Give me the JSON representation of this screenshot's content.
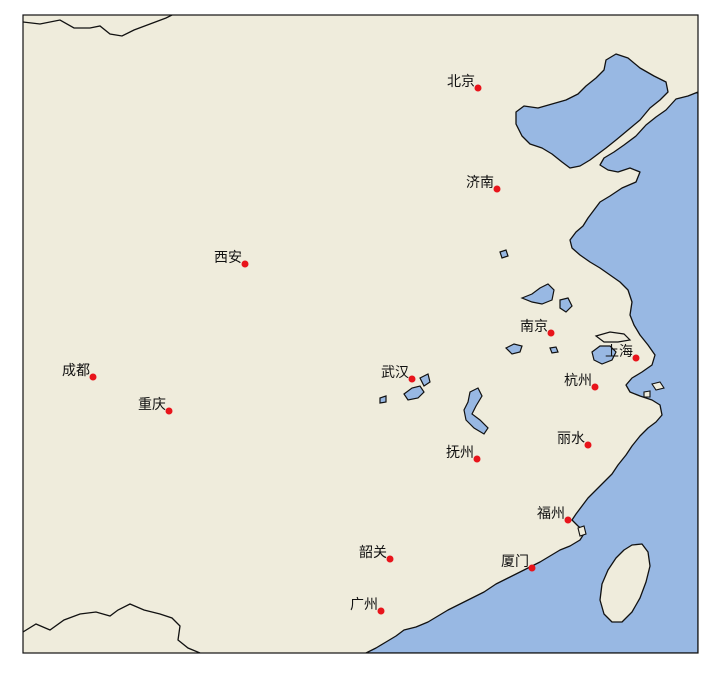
{
  "map": {
    "colors": {
      "land": "#efecdc",
      "ocean": "#98b8e3",
      "border": "#111111",
      "city_marker": "#e8141b"
    },
    "cities": [
      {
        "name": "北京"
      },
      {
        "name": "济南"
      },
      {
        "name": "西安"
      },
      {
        "name": "南京"
      },
      {
        "name": "上海"
      },
      {
        "name": "成都"
      },
      {
        "name": "武汉"
      },
      {
        "name": "杭州"
      },
      {
        "name": "重庆"
      },
      {
        "name": "丽水"
      },
      {
        "name": "抚州"
      },
      {
        "name": "福州"
      },
      {
        "name": "韶关"
      },
      {
        "name": "厦门"
      },
      {
        "name": "广州"
      }
    ]
  }
}
